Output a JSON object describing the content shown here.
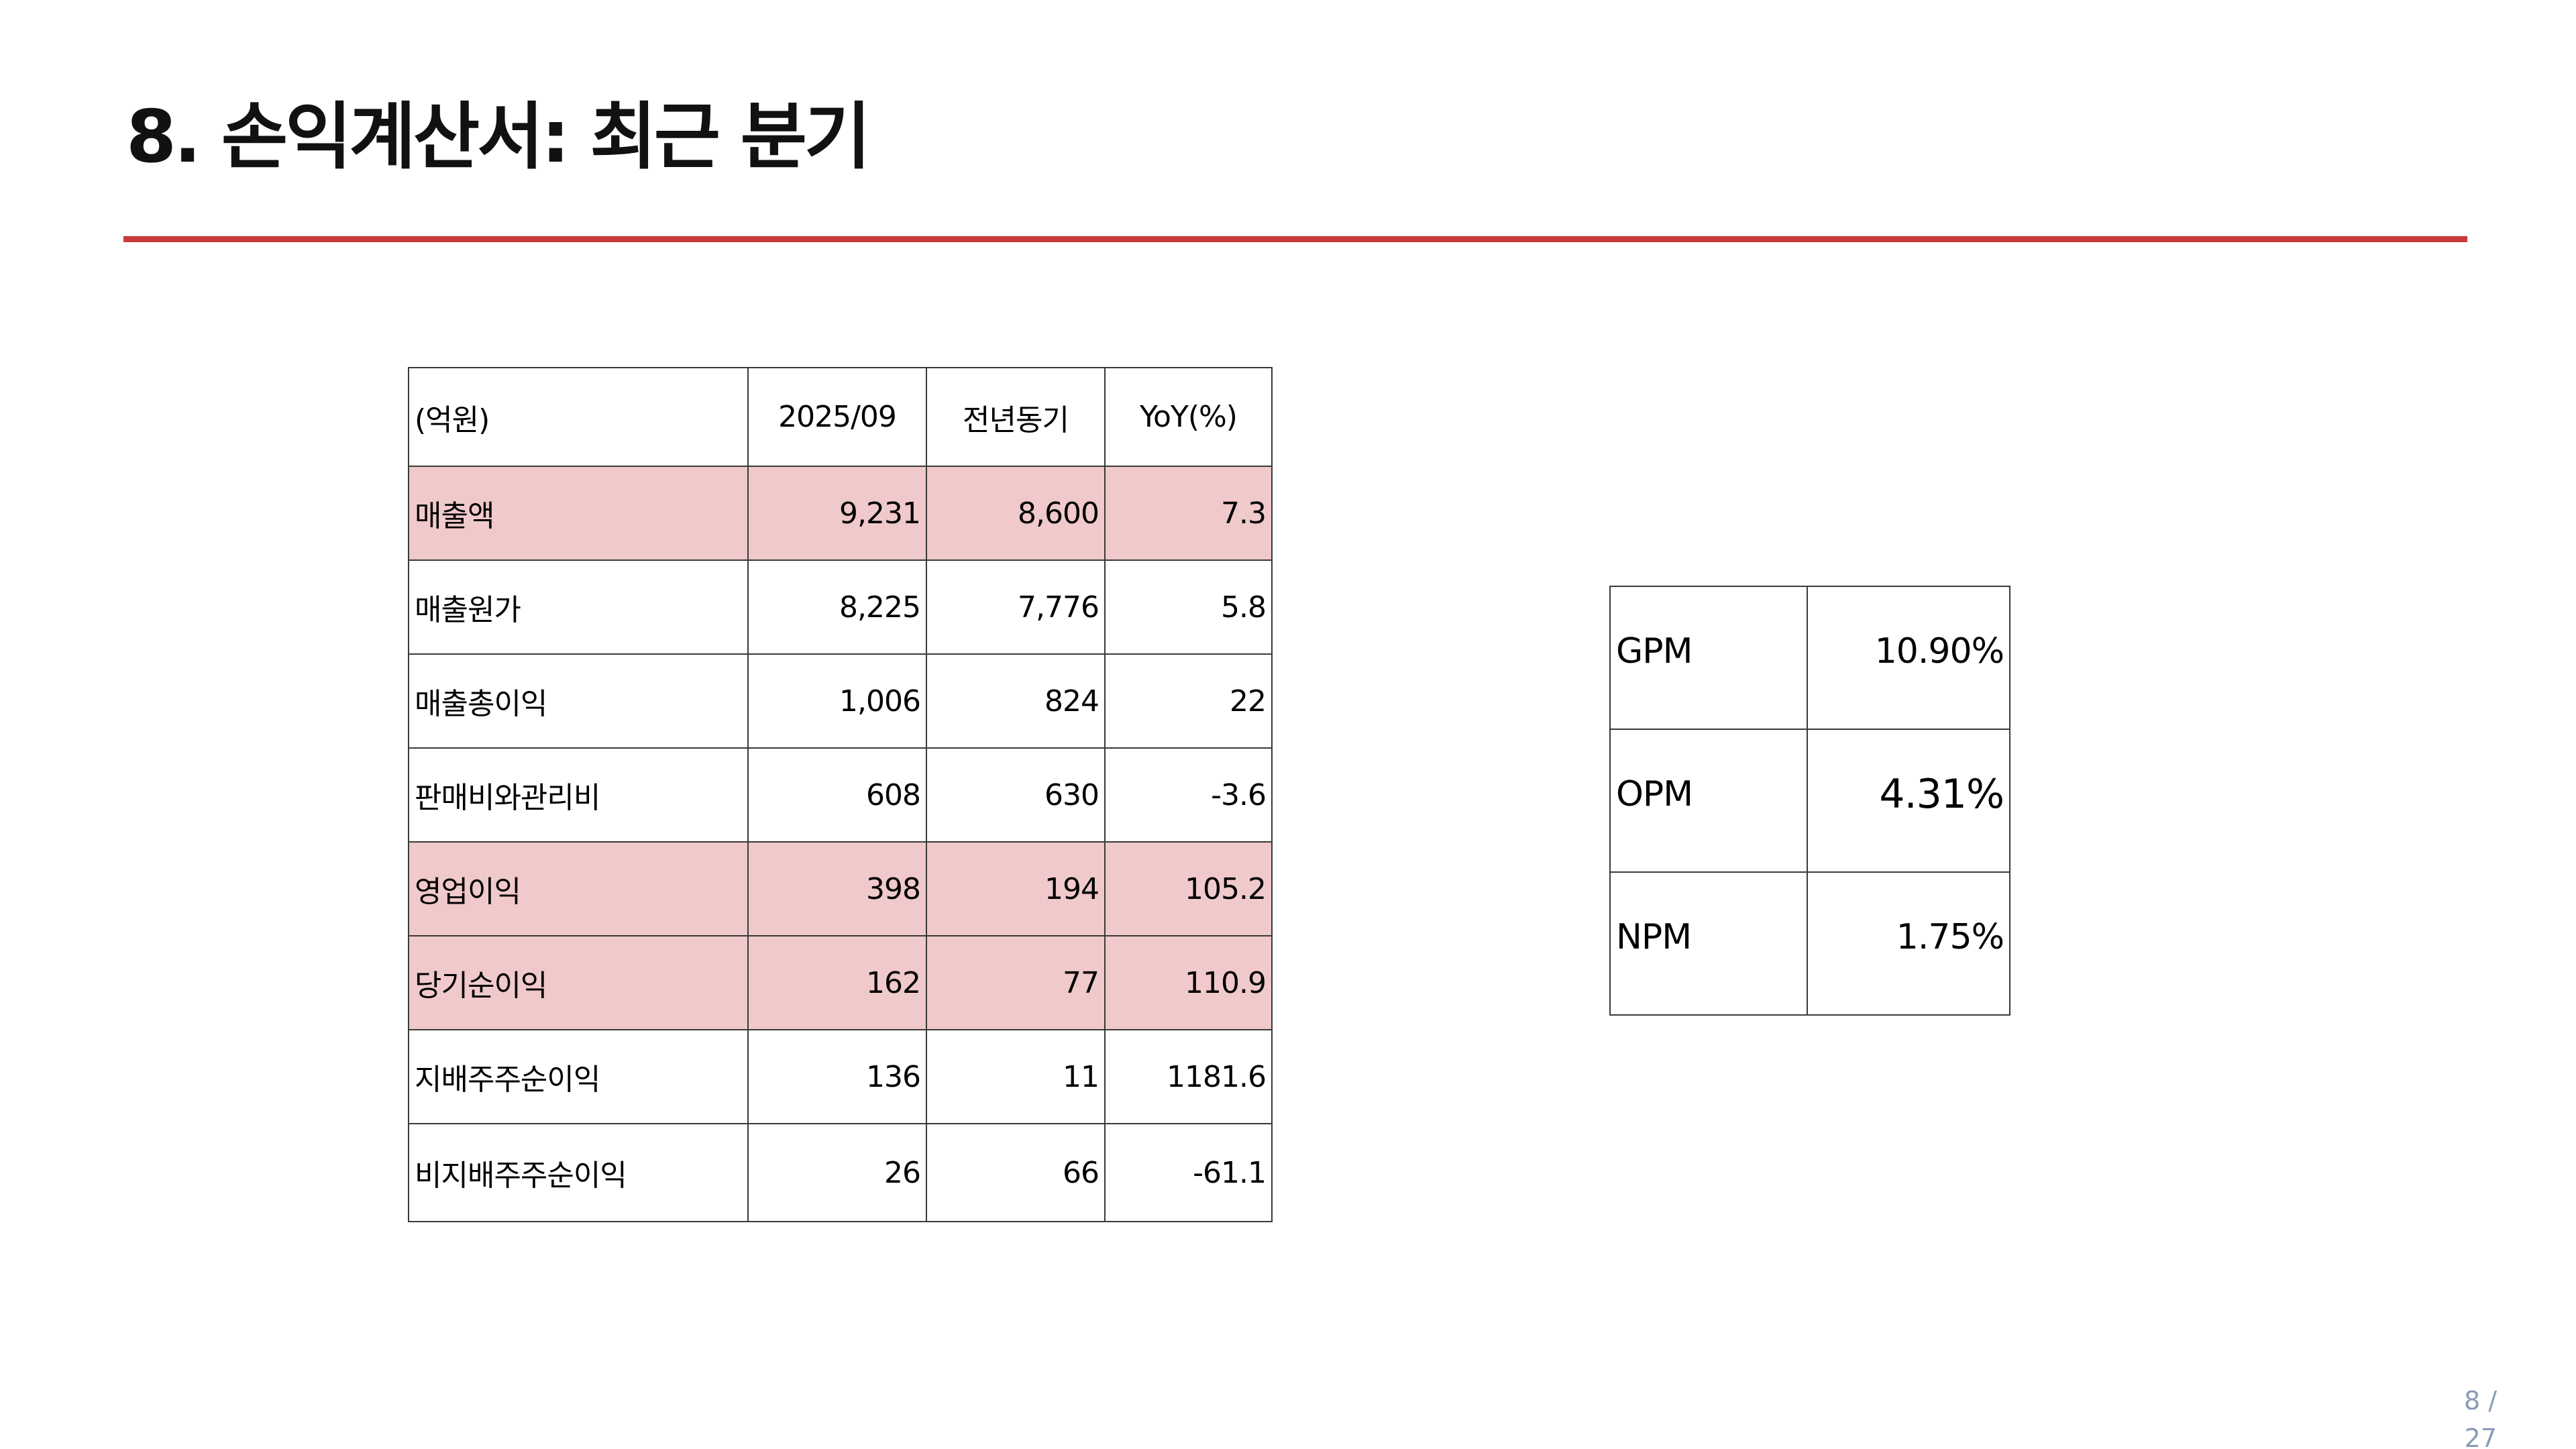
{
  "title": "8. 손익계산서: 최근 분기",
  "colors": {
    "accent_rule": "#c8393b",
    "highlight_row": "#f0c9ca",
    "page_number": "#8a9bb8"
  },
  "income_statement": {
    "header": [
      "(억원)",
      "2025/09",
      "전년동기",
      "YoY(%)"
    ],
    "rows": [
      {
        "label": "매출액",
        "current": "9,231",
        "prior": "8,600",
        "yoy": "7.3",
        "highlight": true
      },
      {
        "label": "매출원가",
        "current": "8,225",
        "prior": "7,776",
        "yoy": "5.8",
        "highlight": false
      },
      {
        "label": "매출총이익",
        "current": "1,006",
        "prior": "824",
        "yoy": "22",
        "highlight": false
      },
      {
        "label": "판매비와관리비",
        "current": "608",
        "prior": "630",
        "yoy": "-3.6",
        "highlight": false
      },
      {
        "label": "영업이익",
        "current": "398",
        "prior": "194",
        "yoy": "105.2",
        "highlight": true
      },
      {
        "label": "당기순이익",
        "current": "162",
        "prior": "77",
        "yoy": "110.9",
        "highlight": true
      },
      {
        "label": "지배주주순이익",
        "current": "136",
        "prior": "11",
        "yoy": "1181.6",
        "highlight": false
      },
      {
        "label": "비지배주주순이익",
        "current": "26",
        "prior": "66",
        "yoy": "-61.1",
        "highlight": false
      }
    ]
  },
  "margins": [
    {
      "label": "GPM",
      "value": "10.90%"
    },
    {
      "label": "OPM",
      "value": "4.31%"
    },
    {
      "label": "NPM",
      "value": "1.75%"
    }
  ],
  "page": {
    "current": "8 /",
    "total": "27"
  }
}
